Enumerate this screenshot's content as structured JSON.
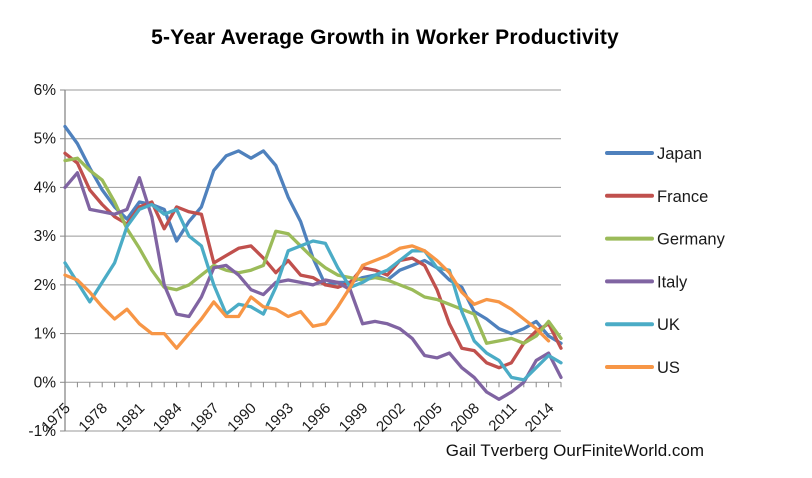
{
  "page": {
    "background": "#ffffff"
  },
  "attribution": {
    "text": "Gail Tverberg OurFiniteWorld.com"
  },
  "chart_data": {
    "type": "line",
    "title": "5-Year Average Growth in Worker Productivity",
    "xlabel": "",
    "ylabel": "",
    "x": [
      1975,
      1976,
      1977,
      1978,
      1979,
      1980,
      1981,
      1982,
      1983,
      1984,
      1985,
      1986,
      1987,
      1988,
      1989,
      1990,
      1991,
      1992,
      1993,
      1994,
      1995,
      1996,
      1997,
      1998,
      1999,
      2000,
      2001,
      2002,
      2003,
      2004,
      2005,
      2006,
      2007,
      2008,
      2009,
      2010,
      2011,
      2012,
      2013,
      2014,
      2015
    ],
    "x_tick_labels": [
      "1975",
      "1978",
      "1981",
      "1984",
      "1987",
      "1990",
      "1993",
      "1996",
      "1999",
      "2002",
      "2005",
      "2008",
      "2011",
      "2014"
    ],
    "x_label_every": 3,
    "y_axis": {
      "min": -1,
      "max": 6,
      "step": 1,
      "unit": "%",
      "labels": [
        "6%",
        "5%",
        "4%",
        "3%",
        "2%",
        "1%",
        "0%",
        "-1%"
      ]
    },
    "grid": true,
    "legend_position": "right",
    "colors": {
      "gridline": "#999999",
      "axis": "#898989",
      "tick": "#898989",
      "label_text": "#1a1a1a"
    },
    "series": [
      {
        "name": "Japan",
        "color": "#4F81BD",
        "values": [
          5.25,
          4.9,
          4.4,
          3.95,
          3.6,
          3.35,
          3.7,
          3.65,
          3.55,
          2.9,
          3.3,
          3.6,
          4.35,
          4.65,
          4.75,
          4.6,
          4.75,
          4.45,
          3.8,
          3.3,
          2.55,
          2.0,
          2.05,
          2.05,
          2.15,
          2.2,
          2.1,
          2.3,
          2.4,
          2.5,
          2.35,
          2.1,
          1.95,
          1.45,
          1.3,
          1.1,
          1.0,
          1.1,
          1.25,
          0.95,
          0.8
        ]
      },
      {
        "name": "France",
        "color": "#C0504D",
        "values": [
          4.7,
          4.5,
          3.95,
          3.65,
          3.4,
          3.25,
          3.6,
          3.7,
          3.15,
          3.6,
          3.5,
          3.45,
          2.45,
          2.6,
          2.75,
          2.8,
          2.55,
          2.25,
          2.5,
          2.2,
          2.15,
          2.0,
          1.95,
          2.05,
          2.35,
          2.3,
          2.2,
          2.5,
          2.55,
          2.4,
          1.9,
          1.2,
          0.7,
          0.65,
          0.4,
          0.3,
          0.4,
          0.8,
          1.05,
          1.2,
          0.7
        ]
      },
      {
        "name": "Germany",
        "color": "#9BBB59",
        "values": [
          4.55,
          4.6,
          4.35,
          4.15,
          3.7,
          3.15,
          2.75,
          2.3,
          1.95,
          1.9,
          2.0,
          2.2,
          2.4,
          2.3,
          2.25,
          2.3,
          2.4,
          3.1,
          3.05,
          2.8,
          2.55,
          2.35,
          2.2,
          2.15,
          2.1,
          2.15,
          2.1,
          2.0,
          1.9,
          1.75,
          1.7,
          1.6,
          1.5,
          1.4,
          0.8,
          0.85,
          0.9,
          0.8,
          0.95,
          1.25,
          0.9
        ]
      },
      {
        "name": "Italy",
        "color": "#8064A2",
        "values": [
          4.0,
          4.3,
          3.55,
          3.5,
          3.45,
          3.55,
          4.2,
          3.4,
          2.0,
          1.4,
          1.35,
          1.75,
          2.35,
          2.4,
          2.2,
          1.9,
          1.8,
          2.05,
          2.1,
          2.05,
          2.0,
          2.1,
          2.05,
          1.9,
          1.2,
          1.25,
          1.2,
          1.1,
          0.9,
          0.55,
          0.5,
          0.6,
          0.3,
          0.1,
          -0.2,
          -0.35,
          -0.2,
          0.0,
          0.45,
          0.6,
          0.1
        ]
      },
      {
        "name": "UK",
        "color": "#4BACC6",
        "values": [
          2.45,
          2.05,
          1.65,
          2.05,
          2.45,
          3.2,
          3.55,
          3.65,
          3.45,
          3.55,
          3.0,
          2.8,
          2.0,
          1.4,
          1.6,
          1.55,
          1.4,
          1.95,
          2.7,
          2.8,
          2.9,
          2.85,
          2.35,
          1.95,
          2.05,
          2.2,
          2.3,
          2.5,
          2.7,
          2.7,
          2.35,
          2.3,
          1.45,
          0.85,
          0.6,
          0.45,
          0.1,
          0.05,
          0.3,
          0.55,
          0.4
        ]
      },
      {
        "name": "US",
        "color": "#F79646",
        "values": [
          2.2,
          2.1,
          1.85,
          1.55,
          1.3,
          1.5,
          1.2,
          1.0,
          1.0,
          0.7,
          1.0,
          1.3,
          1.65,
          1.35,
          1.35,
          1.75,
          1.55,
          1.5,
          1.35,
          1.45,
          1.15,
          1.2,
          1.55,
          1.95,
          2.4,
          2.5,
          2.6,
          2.75,
          2.8,
          2.7,
          2.5,
          2.25,
          1.85,
          1.6,
          1.7,
          1.65,
          1.5,
          1.3,
          1.1,
          0.85,
          null
        ]
      }
    ]
  }
}
